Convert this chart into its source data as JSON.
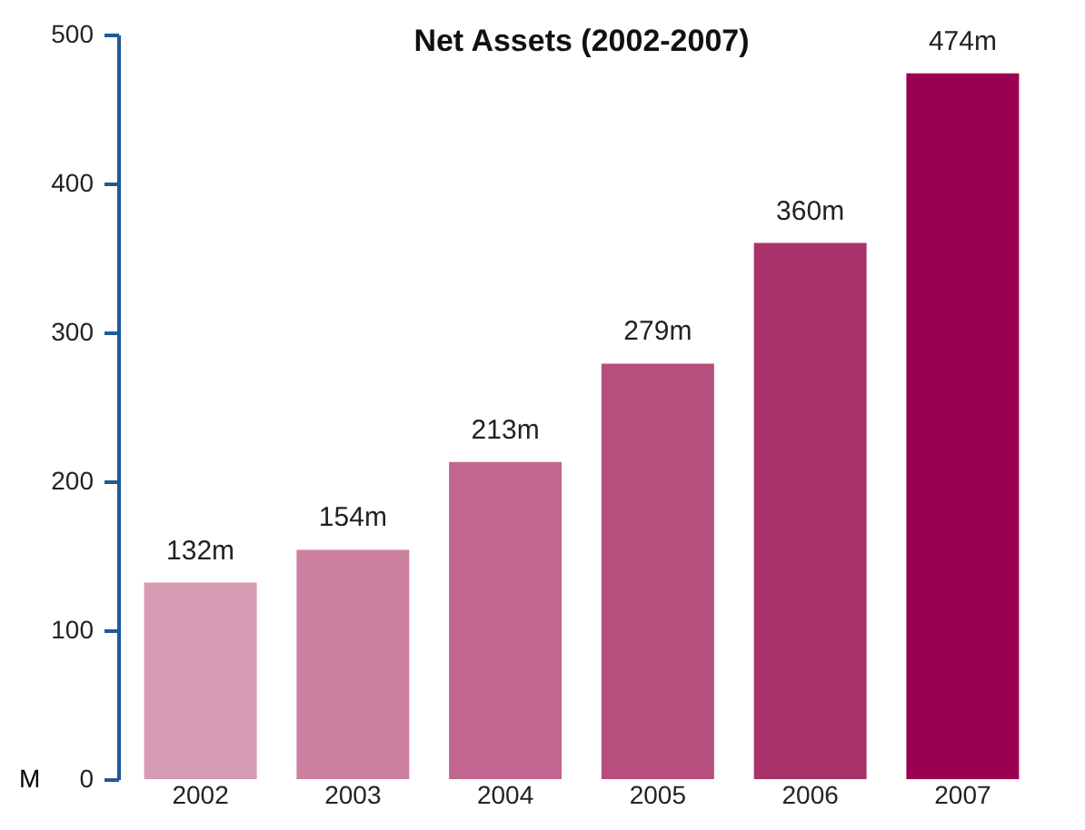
{
  "chart_data": {
    "type": "bar",
    "title": "Net Assets (2002-2007)",
    "ylabel": "M",
    "categories": [
      "2002",
      "2003",
      "2004",
      "2005",
      "2006",
      "2007"
    ],
    "values": [
      132,
      154,
      213,
      279,
      360,
      474
    ],
    "value_labels": [
      "132m",
      "154m",
      "213m",
      "279m",
      "360m",
      "474m"
    ],
    "colors": [
      "#d69ab2",
      "#cc80a0",
      "#c26690",
      "#b64f7e",
      "#a8336a",
      "#9b0050"
    ],
    "ylim": [
      0,
      500
    ],
    "yticks": [
      0,
      100,
      200,
      300,
      400,
      500
    ],
    "grid": false
  }
}
